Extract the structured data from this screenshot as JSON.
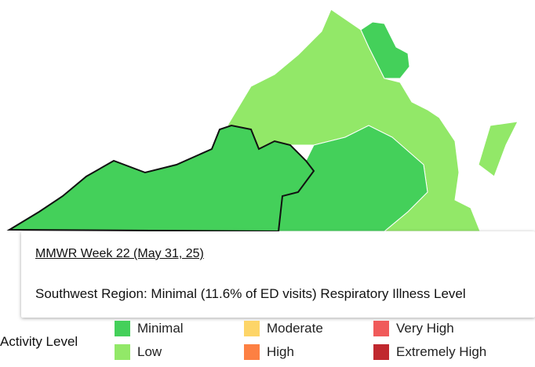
{
  "tooltip": {
    "title": "MMWR Week 22 (May 31, 25)",
    "body": "Southwest Region: Minimal (11.6% of ED visits) Respiratory Illness Level"
  },
  "legend": {
    "title": "Activity Level",
    "items": [
      {
        "label": "Minimal",
        "color": "#44d05a"
      },
      {
        "label": "Low",
        "color": "#92e868"
      },
      {
        "label": "Moderate",
        "color": "#fdd568"
      },
      {
        "label": "High",
        "color": "#fd8043"
      },
      {
        "label": "Very High",
        "color": "#f05a5a"
      },
      {
        "label": "Extremely High",
        "color": "#c0282e"
      }
    ]
  }
}
